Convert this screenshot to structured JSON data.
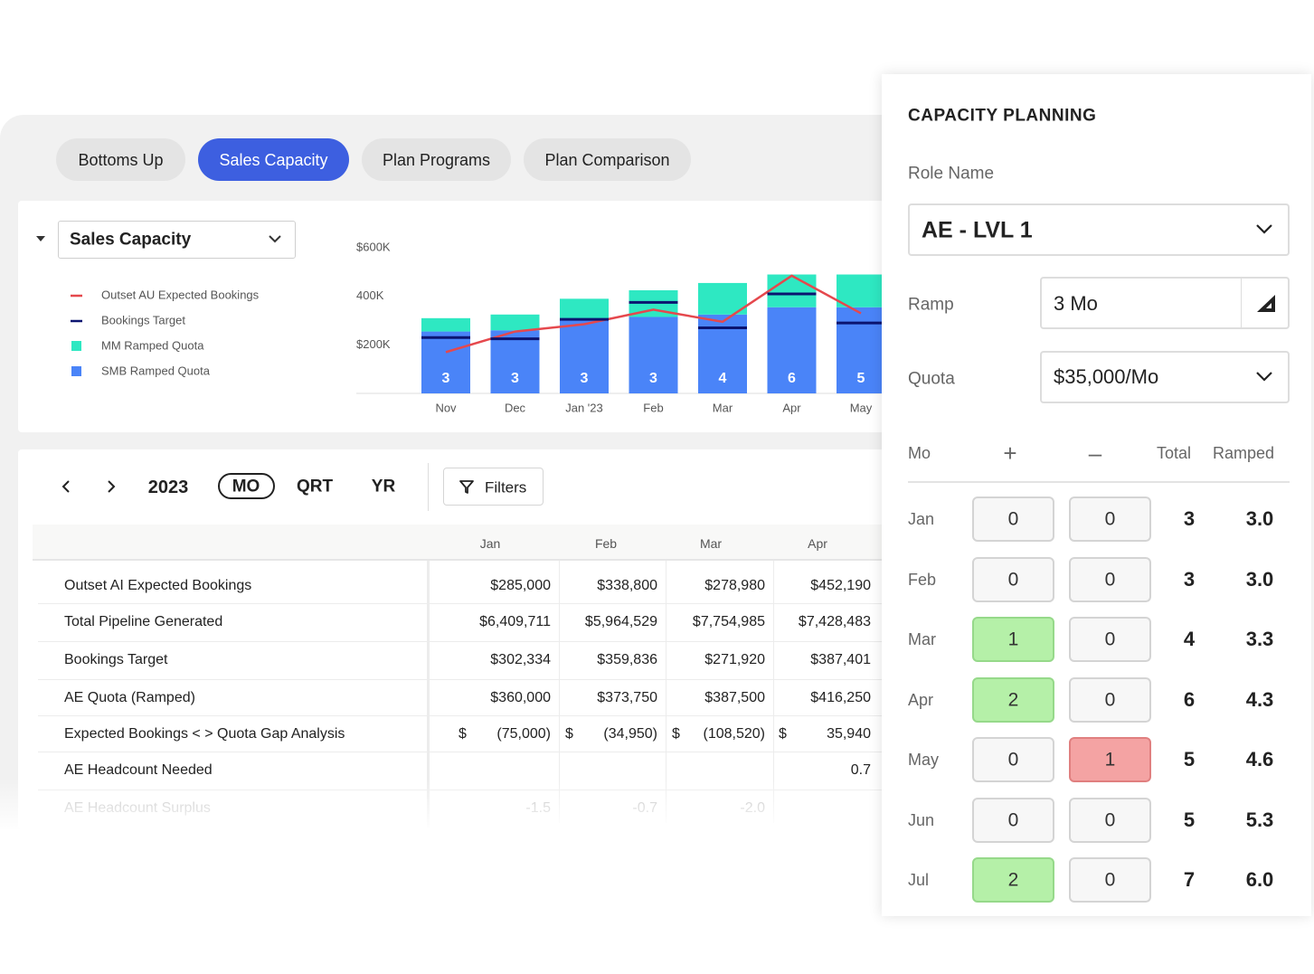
{
  "tabs": [
    {
      "label": "Bottoms Up",
      "active": false
    },
    {
      "label": "Sales Capacity",
      "active": true
    },
    {
      "label": "Plan Programs",
      "active": false
    },
    {
      "label": "Plan Comparison",
      "active": false
    }
  ],
  "chart_card": {
    "dropdown": "Sales Capacity"
  },
  "chart_data": {
    "type": "bar",
    "stacked": true,
    "categories": [
      "Nov",
      "Dec",
      "Jan '23",
      "Feb",
      "Mar",
      "Apr",
      "May"
    ],
    "series": [
      {
        "name": "Outset AU Expected Bookings",
        "color": "#e5484d",
        "kind": "line",
        "values": [
          170000,
          255000,
          285000,
          345000,
          295000,
          485000,
          330000
        ]
      },
      {
        "name": "Bookings Target",
        "color": "#0b1470",
        "kind": "marker",
        "values": [
          230000,
          225000,
          305000,
          375000,
          270000,
          410000,
          290000
        ]
      },
      {
        "name": "MM Ramped Quota",
        "color": "#2ee8c2",
        "kind": "bar",
        "values": [
          55000,
          65000,
          90000,
          110000,
          130000,
          135000,
          135000
        ]
      },
      {
        "name": "SMB Ramped Quota",
        "color": "#4a84f8",
        "kind": "bar",
        "values": [
          255000,
          260000,
          300000,
          315000,
          325000,
          355000,
          355000
        ]
      }
    ],
    "bar_labels": [
      3,
      3,
      3,
      3,
      4,
      6,
      5
    ],
    "ylim": [
      0,
      600000
    ],
    "yticks": [
      {
        "value": 600000,
        "label": "$600K"
      },
      {
        "value": 400000,
        "label": "400K"
      },
      {
        "value": 200000,
        "label": "$200K"
      }
    ],
    "grid": false
  },
  "toolbar": {
    "year": "2023",
    "periods": [
      {
        "label": "MO",
        "active": true
      },
      {
        "label": "QRT",
        "active": false
      },
      {
        "label": "YR",
        "active": false
      }
    ],
    "filters": "Filters"
  },
  "table": {
    "columns": [
      "Jan",
      "Feb",
      "Mar",
      "Apr"
    ],
    "rows": [
      {
        "label": "Outset AI Expected Bookings",
        "cells": [
          "$285,000",
          "$338,800",
          "$278,980",
          "$452,190"
        ]
      },
      {
        "label": "Total Pipeline Generated",
        "cells": [
          "$6,409,711",
          "$5,964,529",
          "$7,754,985",
          "$7,428,483"
        ]
      },
      {
        "label": "Bookings Target",
        "cells": [
          "$302,334",
          "$359,836",
          "$271,920",
          "$387,401"
        ]
      },
      {
        "label": "AE Quota (Ramped)",
        "cells": [
          "$360,000",
          "$373,750",
          "$387,500",
          "$416,250"
        ]
      },
      {
        "label": "Expected Bookings < > Quota Gap Analysis",
        "currency": "$",
        "cells": [
          "(75,000)",
          "(34,950)",
          "(108,520)",
          "35,940"
        ]
      },
      {
        "label": "AE Headcount Needed",
        "cells": [
          null,
          null,
          null,
          "0.7"
        ]
      },
      {
        "label": "AE Headcount Surplus",
        "faded": true,
        "cells": [
          "-1.5",
          "-0.7",
          "-2.0",
          null
        ]
      }
    ]
  },
  "panel": {
    "title": "CAPACITY PLANNING",
    "role_label": "Role Name",
    "role": "AE - LVL 1",
    "ramp_label": "Ramp",
    "ramp": "3 Mo",
    "quota_label": "Quota",
    "quota": "$35,000/Mo",
    "headers": [
      "Mo",
      "+",
      "–",
      "Total",
      "Ramped"
    ],
    "rows": [
      {
        "month": "Jan",
        "plus": 0,
        "minus": 0,
        "total": 3,
        "ramped": "3.0"
      },
      {
        "month": "Feb",
        "plus": 0,
        "minus": 0,
        "total": 3,
        "ramped": "3.0"
      },
      {
        "month": "Mar",
        "plus": 1,
        "minus": 0,
        "total": 4,
        "ramped": "3.3"
      },
      {
        "month": "Apr",
        "plus": 2,
        "minus": 0,
        "total": 6,
        "ramped": "4.3"
      },
      {
        "month": "May",
        "plus": 0,
        "minus": 1,
        "total": 5,
        "ramped": "4.6"
      },
      {
        "month": "Jun",
        "plus": 0,
        "minus": 0,
        "total": 5,
        "ramped": "5.3"
      },
      {
        "month": "Jul",
        "plus": 2,
        "minus": 0,
        "total": 7,
        "ramped": "6.0"
      }
    ]
  }
}
